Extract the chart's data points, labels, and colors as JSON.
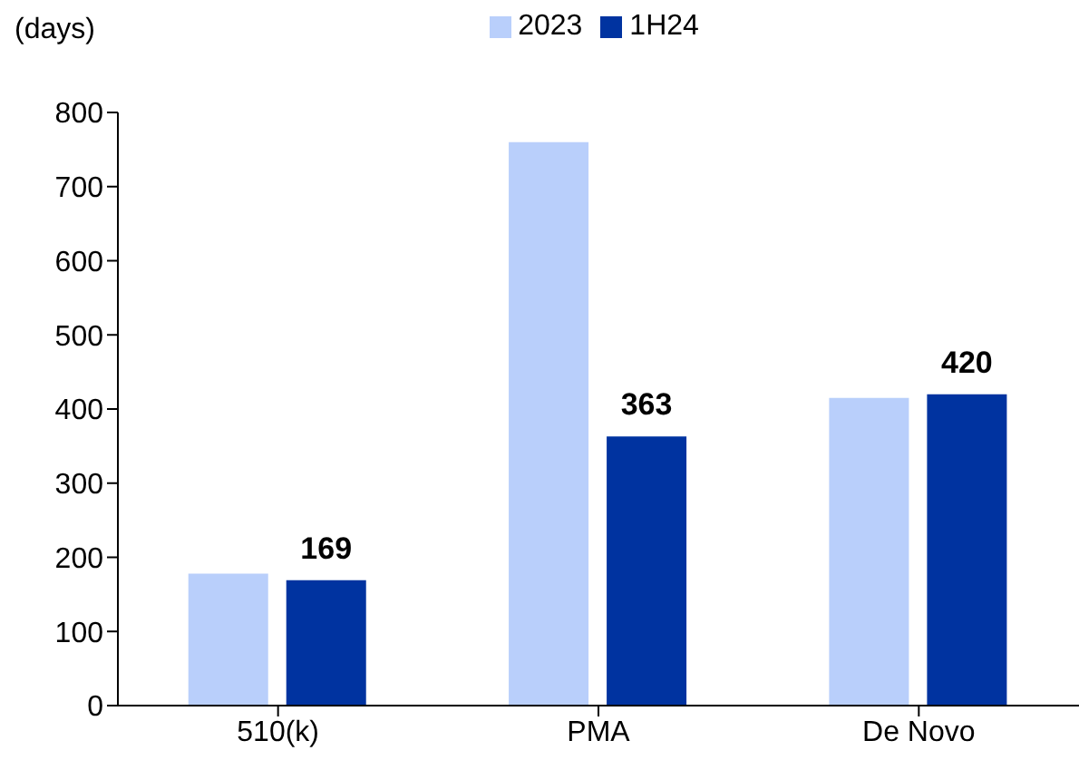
{
  "chart_data": {
    "type": "bar",
    "ylabel": "(days)",
    "categories": [
      "510(k)",
      "PMA",
      "De Novo"
    ],
    "series": [
      {
        "name": "2023",
        "color": "#b9cffb",
        "values": [
          178,
          760,
          415
        ]
      },
      {
        "name": "1H24",
        "color": "#0033a0",
        "values": [
          169,
          363,
          420
        ],
        "value_labels": [
          "169",
          "363",
          "420"
        ]
      }
    ],
    "ylim": [
      0,
      800
    ],
    "yticks": [
      0,
      100,
      200,
      300,
      400,
      500,
      600,
      700,
      800
    ],
    "grid": false,
    "legend": "top"
  }
}
